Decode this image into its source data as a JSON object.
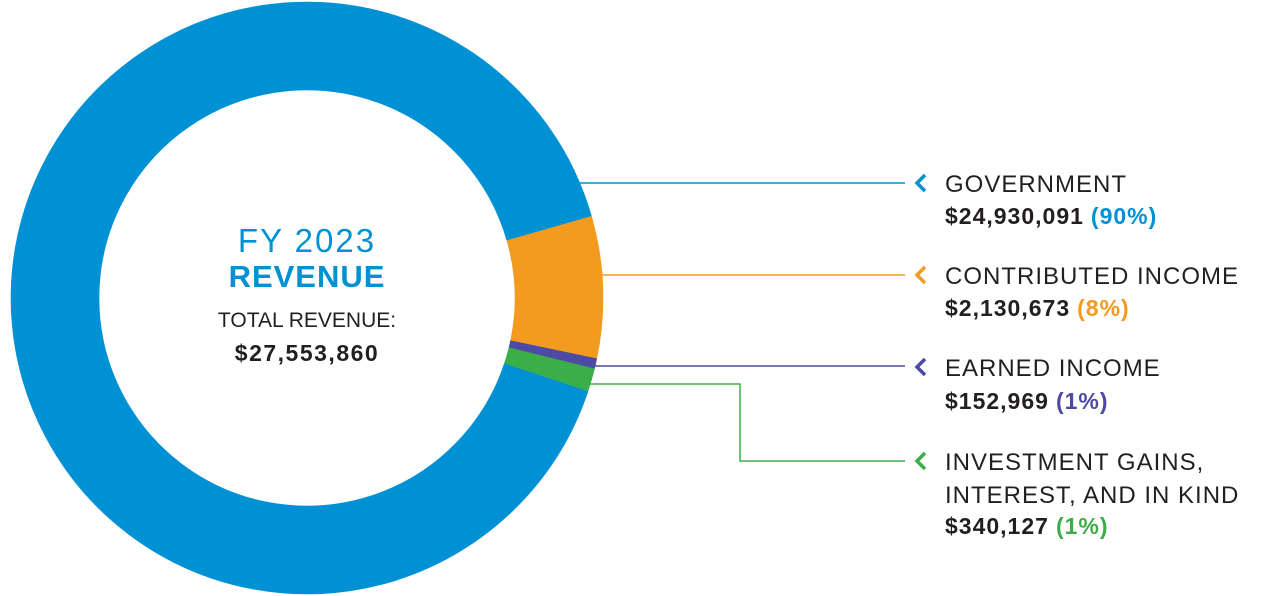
{
  "colors": {
    "title": "#0091d5",
    "text": "#231f20"
  },
  "label_marker_icon": "chevron-left-icon",
  "chart_data": {
    "type": "pie",
    "variant": "donut",
    "title": "FY 2023",
    "title_emphasis": "REVENUE",
    "total_label": "TOTAL REVENUE:",
    "total_value_label": "$27,553,860",
    "legend": "right",
    "slices": [
      {
        "label_lines": [
          "GOVERNMENT"
        ],
        "value": 24930091,
        "value_label": "$24,930,091",
        "percent_label": "(90%)",
        "color": "#0091d5"
      },
      {
        "label_lines": [
          "CONTRIBUTED INCOME"
        ],
        "value": 2130673,
        "value_label": "$2,130,673",
        "percent_label": "(8%)",
        "color": "#f39a1f"
      },
      {
        "label_lines": [
          "EARNED INCOME"
        ],
        "value": 152969,
        "value_label": "$152,969",
        "percent_label": "(1%)",
        "color": "#4c4aa3"
      },
      {
        "label_lines": [
          "INVESTMENT GAINS,",
          "INTEREST, AND IN KIND"
        ],
        "value": 340127,
        "value_label": "$340,127",
        "percent_label": "(1%)",
        "color": "#3bae4a"
      }
    ]
  }
}
